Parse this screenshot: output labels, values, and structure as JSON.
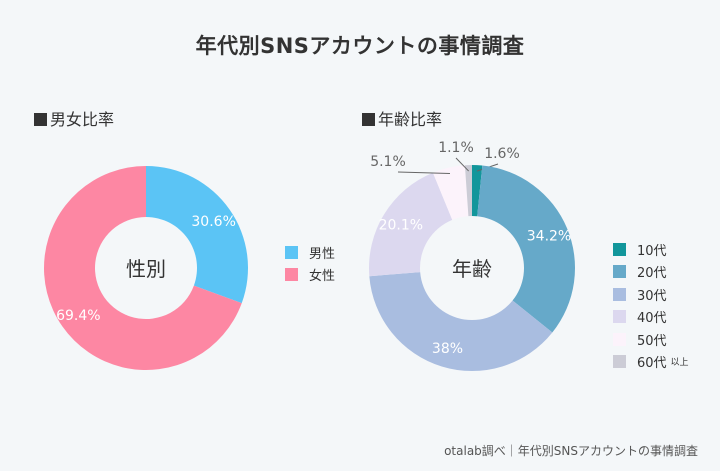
{
  "title": "年代別SNSアカウントの事情調査",
  "footer": "otalab調べ｜年代別SNSアカウントの事情調査",
  "chart_data": [
    {
      "type": "pie",
      "variant": "donut",
      "section_title": "男女比率",
      "center_label": "性別",
      "labels": [
        "男性",
        "女性"
      ],
      "values": [
        30.6,
        69.4
      ],
      "value_labels": [
        "30.6%",
        "69.4%"
      ],
      "colors": [
        "#5bc4f5",
        "#fd87a3"
      ],
      "legend_position": "right"
    },
    {
      "type": "pie",
      "variant": "donut",
      "section_title": "年齢比率",
      "center_label": "年齢",
      "labels": [
        "10代",
        "20代",
        "30代",
        "40代",
        "50代",
        "60代"
      ],
      "label_suffixes": [
        "",
        "",
        "",
        "",
        "",
        "以上"
      ],
      "values": [
        1.6,
        34.2,
        38,
        20.1,
        5.1,
        1.1
      ],
      "value_labels": [
        "1.6%",
        "34.2%",
        "38%",
        "20.1%",
        "5.1%",
        "1.1%"
      ],
      "colors": [
        "#12969b",
        "#66a9c9",
        "#a9bde0",
        "#dcd8ef",
        "#fcf3fb",
        "#ccccd6"
      ],
      "legend_position": "right"
    }
  ]
}
